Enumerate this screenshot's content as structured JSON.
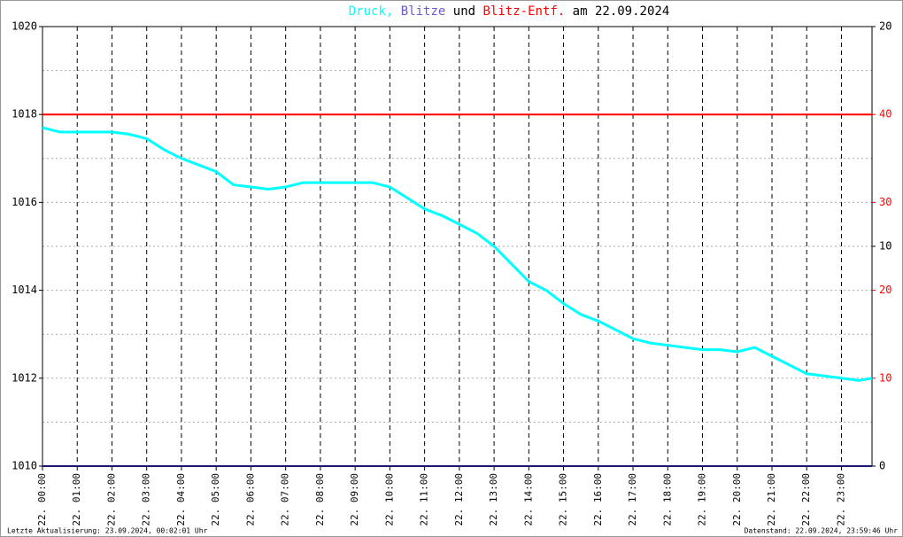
{
  "chart_data": {
    "type": "line",
    "title": [
      {
        "text": "Druck,",
        "color": "#00ffff"
      },
      {
        "text": "Blitze",
        "color": "#6a5acd"
      },
      {
        "text": "und",
        "color": "#000000"
      },
      {
        "text": "Blitz-Entf.",
        "color": "#ff0000"
      },
      {
        "text": "am 22.09.2024",
        "color": "#000000"
      }
    ],
    "xlim": [
      0,
      23.88
    ],
    "xticks": [
      {
        "value": 0,
        "label": "22. 00:00"
      },
      {
        "value": 1,
        "label": "22. 01:00"
      },
      {
        "value": 2,
        "label": "22. 02:00"
      },
      {
        "value": 3,
        "label": "22. 03:00"
      },
      {
        "value": 4,
        "label": "22. 04:00"
      },
      {
        "value": 5,
        "label": "22. 05:00"
      },
      {
        "value": 6,
        "label": "22. 06:00"
      },
      {
        "value": 7,
        "label": "22. 07:00"
      },
      {
        "value": 8,
        "label": "22. 08:00"
      },
      {
        "value": 9,
        "label": "22. 09:00"
      },
      {
        "value": 10,
        "label": "22. 10:00"
      },
      {
        "value": 11,
        "label": "22. 11:00"
      },
      {
        "value": 12,
        "label": "22. 12:00"
      },
      {
        "value": 13,
        "label": "22. 13:00"
      },
      {
        "value": 14,
        "label": "22. 14:00"
      },
      {
        "value": 15,
        "label": "22. 15:00"
      },
      {
        "value": 16,
        "label": "22. 16:00"
      },
      {
        "value": 17,
        "label": "22. 17:00"
      },
      {
        "value": 18,
        "label": "22. 18:00"
      },
      {
        "value": 19,
        "label": "22. 19:00"
      },
      {
        "value": 20,
        "label": "22. 20:00"
      },
      {
        "value": 21,
        "label": "22. 21:00"
      },
      {
        "value": 22,
        "label": "22. 22:00"
      },
      {
        "value": 23,
        "label": "22. 23:00"
      }
    ],
    "ylim": [
      1010,
      1020
    ],
    "yticks": [
      1010,
      1012,
      1014,
      1016,
      1018,
      1020
    ],
    "ygrid": [
      1011,
      1012,
      1013,
      1014,
      1015,
      1016,
      1017,
      1018,
      1019
    ],
    "y2lim": [
      0,
      20
    ],
    "y2ticks": [
      0,
      10,
      20
    ],
    "y3lim": [
      0,
      50
    ],
    "y3ticks": [
      10,
      20,
      30,
      40
    ],
    "y3color": "#ff0000",
    "series": [
      {
        "name": "Druck",
        "color": "#00ffff",
        "axis": "y",
        "x": [
          0,
          0.5,
          1,
          1.5,
          2,
          2.5,
          3,
          3.5,
          4,
          4.5,
          5,
          5.5,
          6,
          6.5,
          7,
          7.5,
          8,
          8.5,
          9,
          9.5,
          10,
          10.5,
          11,
          11.5,
          12,
          12.5,
          13,
          13.5,
          14,
          14.5,
          15,
          15.5,
          16,
          16.5,
          17,
          17.5,
          18,
          18.5,
          19,
          19.5,
          20,
          20.5,
          21,
          21.5,
          22,
          22.5,
          23,
          23.5,
          23.88
        ],
        "values": [
          1017.7,
          1017.6,
          1017.6,
          1017.6,
          1017.6,
          1017.55,
          1017.45,
          1017.2,
          1017.0,
          1016.85,
          1016.7,
          1016.4,
          1016.35,
          1016.3,
          1016.35,
          1016.45,
          1016.45,
          1016.45,
          1016.45,
          1016.45,
          1016.35,
          1016.1,
          1015.85,
          1015.7,
          1015.5,
          1015.3,
          1015.0,
          1014.6,
          1014.2,
          1014.0,
          1013.7,
          1013.45,
          1013.3,
          1013.1,
          1012.9,
          1012.8,
          1012.75,
          1012.7,
          1012.65,
          1012.65,
          1012.6,
          1012.7,
          1012.5,
          1012.3,
          1012.1,
          1012.05,
          1012.0,
          1011.95,
          1012.0
        ]
      },
      {
        "name": "Blitze",
        "color": "#191970",
        "axis": "y2",
        "x": [
          0,
          23.88
        ],
        "values": [
          0,
          0
        ]
      },
      {
        "name": "Blitz-Entf.",
        "color": "#ff0000",
        "axis": "y3",
        "x": [
          0,
          23.88
        ],
        "values": [
          40,
          40
        ]
      }
    ],
    "footer_left": "Letzte Aktualisierung: 23.09.2024, 00:02:01 Uhr",
    "footer_right": "Datenstand: 22.09.2024, 23:59:46 Uhr"
  }
}
